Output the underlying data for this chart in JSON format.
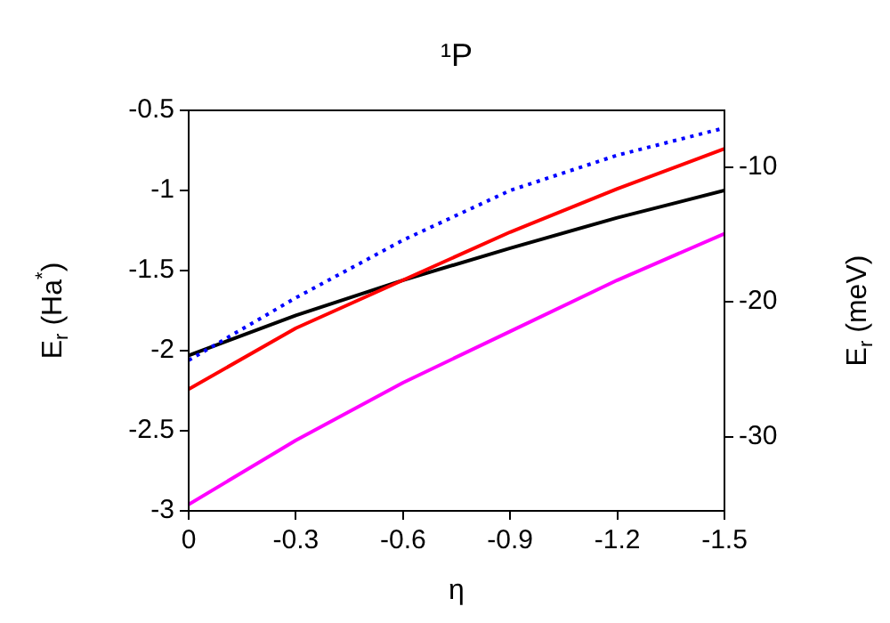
{
  "chart_data": {
    "type": "line",
    "title": "¹P",
    "xlabel": "η",
    "ylabel": "E$_{r}$ (Ha$^{*}$)",
    "y2label": "E$_{r}$ (meV)",
    "x": [
      0,
      -0.3,
      -0.6,
      -0.9,
      -1.2,
      -1.5
    ],
    "series": [
      {
        "color": "#0000ff",
        "line_style": "dotted",
        "values": [
          -2.06,
          -1.67,
          -1.31,
          -1.0,
          -0.78,
          -0.61
        ]
      },
      {
        "color": "#ff0000",
        "line_style": "solid",
        "values": [
          -2.24,
          -1.86,
          -1.56,
          -1.26,
          -0.99,
          -0.74
        ]
      },
      {
        "color": "#000000",
        "line_style": "solid",
        "values": [
          -2.03,
          -1.78,
          -1.56,
          -1.36,
          -1.17,
          -1.0
        ]
      },
      {
        "color": "#ff00ff",
        "line_style": "solid",
        "values": [
          -2.96,
          -2.56,
          -2.2,
          -1.88,
          -1.56,
          -1.27
        ]
      }
    ],
    "xlim": [
      0,
      -1.5
    ],
    "xticks": [
      0,
      -0.3,
      -0.6,
      -0.9,
      -1.2,
      -1.5
    ],
    "ylim": [
      -3,
      -0.5
    ],
    "yticks": [
      -3,
      -2.5,
      -2,
      -1.5,
      -1,
      -0.5
    ],
    "y2lim": [
      -35.5,
      -5.8
    ],
    "y2ticks": [
      -30,
      -20,
      -10
    ],
    "grid": false,
    "legend": false,
    "marker": "none"
  }
}
